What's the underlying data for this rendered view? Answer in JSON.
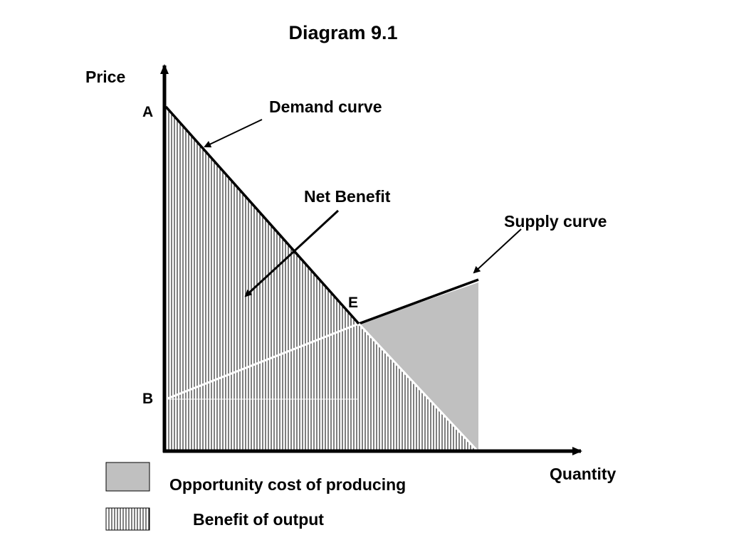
{
  "title": "Diagram 9.1",
  "axes": {
    "y_label": "Price",
    "x_label": "Quantity"
  },
  "points": {
    "a": "A",
    "b": "B",
    "e": "E"
  },
  "annotations": {
    "demand": "Demand curve",
    "supply": "Supply curve",
    "net_benefit": "Net Benefit"
  },
  "legend": {
    "opportunity_cost": "Opportunity cost of producing",
    "benefit": "Benefit of output"
  },
  "colors": {
    "opportunity_cost_fill": "#c0c0c0",
    "line": "#000000",
    "background": "#ffffff"
  }
}
